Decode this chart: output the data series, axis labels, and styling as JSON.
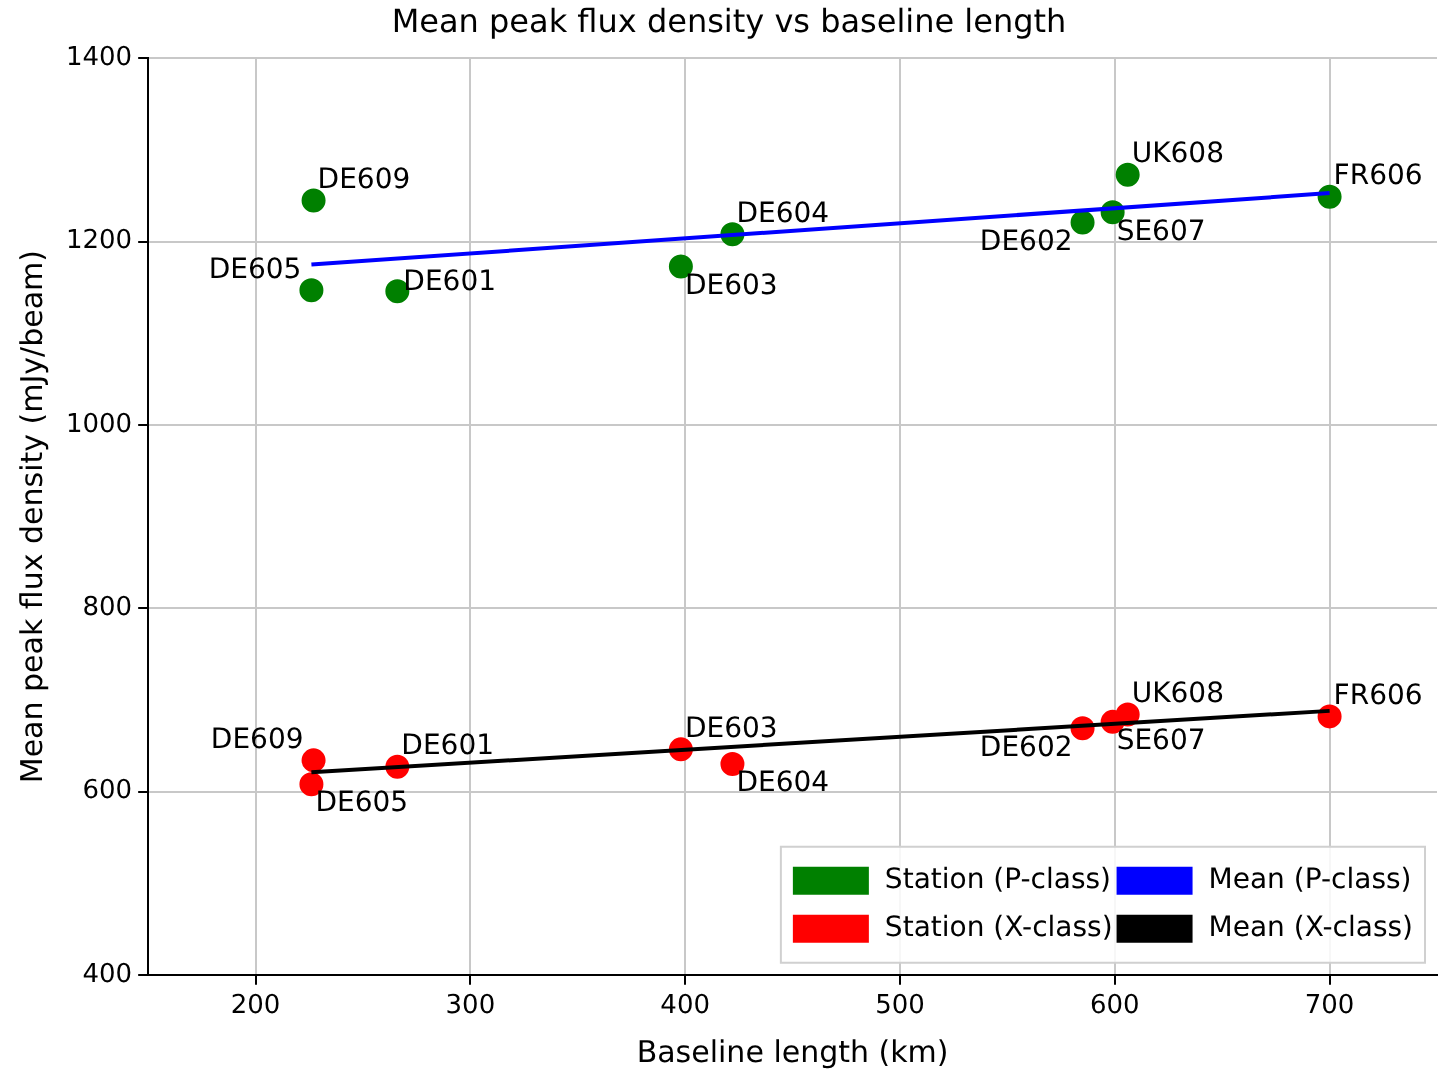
{
  "chart_data": {
    "type": "scatter",
    "title": "Mean peak flux density vs baseline length",
    "xlabel": "Baseline length (km)",
    "ylabel": "Mean peak flux density (mJy/beam)",
    "xlim": [
      150,
      750
    ],
    "xticks": [
      200,
      300,
      400,
      500,
      600,
      700
    ],
    "ylim": [
      400,
      1400
    ],
    "yticks": [
      400,
      600,
      800,
      1000,
      1200,
      1400
    ],
    "grid": true,
    "legend": "bottom right",
    "series": [
      {
        "name": "Station (P-class)",
        "color": "#008000",
        "marker": "circle",
        "x": [
          227,
          226,
          266,
          398,
          422,
          585,
          599,
          606,
          700
        ],
        "values": [
          1245,
          1147,
          1146,
          1173,
          1208,
          1221,
          1232,
          1273,
          1249
        ]
      },
      {
        "name": "Station (X-class)",
        "color": "#ff0000",
        "marker": "circle",
        "x": [
          227,
          226,
          266,
          398,
          422,
          585,
          599,
          606,
          700
        ],
        "values": [
          634,
          608,
          627,
          646,
          630,
          669,
          676,
          684,
          682
        ]
      },
      {
        "name": "Mean (P-class)",
        "color": "#0000ff",
        "type": "line",
        "marker": "none",
        "x": [
          226,
          700
        ],
        "values": [
          1175,
          1253
        ]
      },
      {
        "name": "Mean (X-class)",
        "color": "#000000",
        "type": "line",
        "marker": "none",
        "x": [
          226,
          700
        ],
        "values": [
          621,
          688
        ]
      }
    ],
    "annotations": [
      {
        "text": "DE609",
        "x": 227,
        "y": 1245
      },
      {
        "text": "DE605",
        "x": 226,
        "y": 1147
      },
      {
        "text": "DE601",
        "x": 266,
        "y": 1146
      },
      {
        "text": "DE603",
        "x": 398,
        "y": 1173
      },
      {
        "text": "DE604",
        "x": 422,
        "y": 1208
      },
      {
        "text": "DE602",
        "x": 585,
        "y": 1221
      },
      {
        "text": "SE607",
        "x": 599,
        "y": 1232
      },
      {
        "text": "UK608",
        "x": 606,
        "y": 1273
      },
      {
        "text": "FR606",
        "x": 700,
        "y": 1249
      },
      {
        "text": "DE609",
        "x": 227,
        "y": 634
      },
      {
        "text": "DE605",
        "x": 226,
        "y": 608
      },
      {
        "text": "DE601",
        "x": 266,
        "y": 627
      },
      {
        "text": "DE603",
        "x": 398,
        "y": 646
      },
      {
        "text": "DE604",
        "x": 422,
        "y": 630
      },
      {
        "text": "DE602",
        "x": 585,
        "y": 669
      },
      {
        "text": "SE607",
        "x": 599,
        "y": 676
      },
      {
        "text": "UK608",
        "x": 606,
        "y": 684
      },
      {
        "text": "FR606",
        "x": 700,
        "y": 682
      }
    ]
  }
}
